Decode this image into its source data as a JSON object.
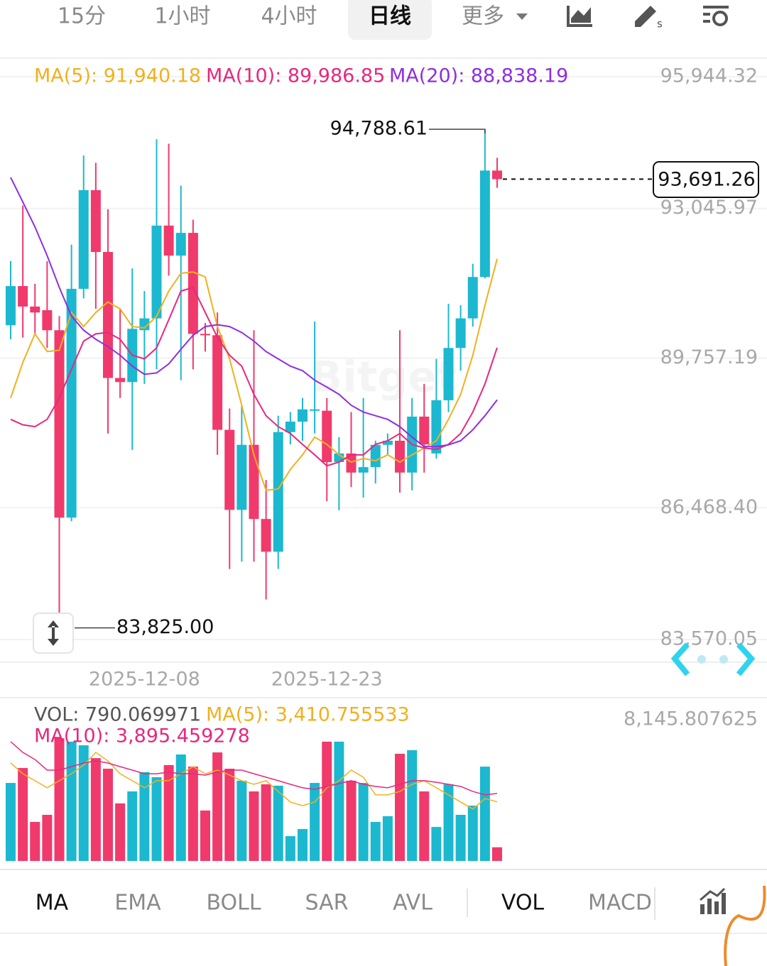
{
  "tabs": [
    "15分",
    "1小时",
    "4小时",
    "日线",
    "更多"
  ],
  "indicator_tabs": [
    "MA",
    "EMA",
    "BOLL",
    "SAR",
    "AVL",
    "VOL",
    "MACD"
  ],
  "watermark": "Bitget",
  "chart_data": [
    {
      "type": "candlestick",
      "up_color": "#1cb8cf",
      "down_color": "#f03a6c",
      "categories": [
        null,
        null,
        null,
        null,
        null,
        null,
        null,
        null,
        null,
        null,
        null,
        "2025-12-08",
        null,
        null,
        null,
        null,
        null,
        null,
        null,
        null,
        null,
        null,
        null,
        null,
        null,
        null,
        "2025-12-23",
        null,
        null,
        null,
        null,
        null,
        null,
        null,
        null,
        null,
        null,
        null,
        null,
        null,
        null
      ],
      "open": [
        90480,
        91340,
        90890,
        90810,
        90370,
        86250,
        91280,
        93450,
        92090,
        89320,
        89230,
        90370,
        90630,
        92670,
        92010,
        92510,
        90290,
        90260,
        88180,
        86420,
        87850,
        86220,
        85500,
        88130,
        88360,
        88600,
        88600,
        87470,
        87660,
        87240,
        87360,
        87850,
        87940,
        87240,
        88470,
        87660,
        88830,
        89980,
        90630,
        91540,
        93880
      ],
      "high": [
        91890,
        93110,
        91390,
        91890,
        90680,
        92250,
        94210,
        94050,
        93030,
        90840,
        91730,
        91230,
        94570,
        94470,
        93550,
        92800,
        90530,
        90760,
        88650,
        88720,
        90370,
        87080,
        88490,
        88570,
        88880,
        90560,
        88880,
        88020,
        88570,
        88880,
        87940,
        88100,
        90370,
        88880,
        89190,
        89740,
        90950,
        90920,
        91830,
        94788.61,
        94160
      ],
      "low": [
        90170,
        90210,
        90290,
        89980,
        83825,
        86170,
        91070,
        90840,
        88100,
        88880,
        87740,
        89190,
        89510,
        91570,
        89270,
        89510,
        89900,
        87630,
        85120,
        85280,
        85280,
        84450,
        85120,
        87860,
        87940,
        88100,
        86610,
        86410,
        86920,
        86690,
        87000,
        87630,
        86800,
        86850,
        87240,
        87550,
        88570,
        89480,
        90450,
        91510,
        93500
      ],
      "close": [
        91340,
        90890,
        90760,
        90370,
        86250,
        91280,
        93450,
        92090,
        89320,
        89230,
        90400,
        90630,
        92670,
        92010,
        92510,
        90290,
        90260,
        88180,
        86420,
        87850,
        86220,
        85500,
        88130,
        88360,
        88630,
        88630,
        87470,
        87660,
        87240,
        87360,
        87850,
        87940,
        87240,
        88470,
        87860,
        88830,
        89980,
        90630,
        91540,
        93880,
        93691.26
      ],
      "series": [
        {
          "name": "MA(5): 91,940.18",
          "color": "#f2b01e",
          "values": [
            88880,
            89660,
            90290,
            89900,
            89930,
            90760,
            90450,
            90760,
            90990,
            90840,
            90450,
            90420,
            90680,
            91230,
            91620,
            91650,
            91540,
            90450,
            89740,
            88720,
            87630,
            86850,
            86880,
            87310,
            87630,
            88020,
            87860,
            87630,
            87470,
            87550,
            87500,
            87630,
            87470,
            87630,
            87780,
            87940,
            88410,
            88960,
            89820,
            90920,
            91940.18
          ]
        },
        {
          "name": "MA(10): 89,986.85",
          "color": "#e6287f",
          "values": [
            88410,
            88290,
            88250,
            88410,
            88880,
            89510,
            90130,
            90290,
            90320,
            90170,
            89820,
            89740,
            89980,
            90600,
            91230,
            91310,
            90760,
            90210,
            89820,
            89580,
            88960,
            88490,
            88250,
            88100,
            87860,
            87630,
            87390,
            87470,
            87630,
            87630,
            87860,
            87940,
            88100,
            87860,
            87780,
            87750,
            87860,
            88100,
            88570,
            89190,
            89986.85
          ]
        },
        {
          "name": "MA(20): 88,838.19",
          "color": "#8f2ee0",
          "values": [
            93730,
            93190,
            92640,
            92010,
            91310,
            90680,
            90370,
            90170,
            90010,
            89820,
            89580,
            89400,
            89430,
            89630,
            89950,
            90260,
            90450,
            90490,
            90450,
            90320,
            90130,
            89900,
            89740,
            89580,
            89480,
            89270,
            89120,
            88960,
            88720,
            88570,
            88490,
            88410,
            88250,
            88020,
            87810,
            87810,
            87850,
            87940,
            88180,
            88490,
            88838.19
          ]
        }
      ],
      "ylim": [
        83570.05,
        95944.32
      ],
      "yticks": [
        {
          "value": 95944.32,
          "label": "95,944.32"
        },
        {
          "value": 93045.97,
          "label": "93,045.97"
        },
        {
          "value": 89757.19,
          "label": "89,757.19"
        },
        {
          "value": 86468.4,
          "label": "86,468.40"
        },
        {
          "value": 83570.05,
          "label": "83,570.05"
        }
      ],
      "grid": true,
      "annotations": {
        "high": {
          "value": 94788.61,
          "label": "94,788.61"
        },
        "low": {
          "value": 83825.0,
          "label": "83,825.00"
        },
        "last": {
          "value": 93691.26,
          "label": "93,691.26"
        }
      }
    },
    {
      "type": "bar",
      "series": [
        {
          "name": "VOL: 790.069971",
          "values": [
            4500,
            5360,
            2250,
            2660,
            7080,
            6880,
            6670,
            5930,
            5320,
            3320,
            4010,
            5120,
            4830,
            5530,
            6140,
            5440,
            2910,
            6260,
            5320,
            4630,
            4010,
            4420,
            4340,
            1430,
            1840,
            4500,
            6880,
            6880,
            4630,
            4500,
            2250,
            2580,
            6180,
            6390,
            4010,
            1960,
            4420,
            2660,
            3190,
            5440,
            790.069971
          ]
        },
        {
          "name": "MA(5): 3,410.755533",
          "color": "#f2b01e",
          "values": [
            5650,
            5030,
            4630,
            4220,
            4630,
            5030,
            5530,
            6260,
            5770,
            5030,
            4630,
            4220,
            4630,
            4630,
            5030,
            5440,
            5030,
            5240,
            4950,
            4630,
            4420,
            4630,
            4010,
            3400,
            3190,
            3400,
            4220,
            4630,
            5240,
            4830,
            3810,
            3810,
            4010,
            4420,
            4630,
            4220,
            3810,
            3400,
            2990,
            3600,
            3410.755533
          ]
        },
        {
          "name": "MA(10): 3,895.459278",
          "color": "#e6287f",
          "values": [
            6880,
            6260,
            5850,
            5240,
            5240,
            5440,
            5650,
            5770,
            5650,
            5440,
            5240,
            5030,
            5030,
            5120,
            5030,
            5030,
            4950,
            5120,
            5240,
            5240,
            5030,
            4830,
            4630,
            4420,
            4220,
            4130,
            4300,
            4460,
            4630,
            4420,
            4300,
            4220,
            4420,
            4630,
            4630,
            4540,
            4420,
            4300,
            4010,
            3810,
            3895.459278
          ]
        }
      ],
      "ylim": [
        0,
        8145.807625
      ],
      "yticks": [
        {
          "value": 8145.807625,
          "label": "8,145.807625"
        }
      ]
    }
  ]
}
